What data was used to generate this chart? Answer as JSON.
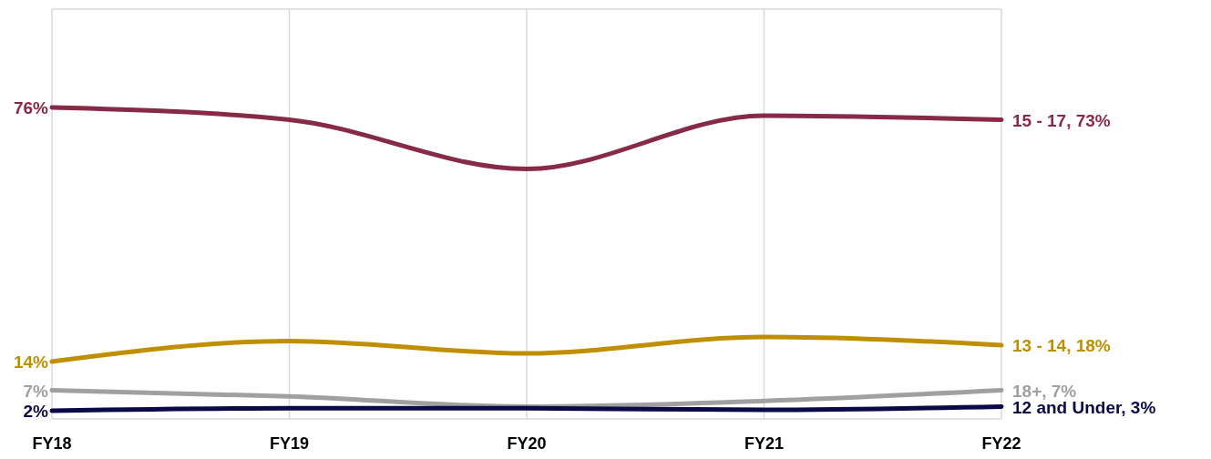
{
  "chart_data": {
    "type": "line",
    "categories": [
      "FY18",
      "FY19",
      "FY20",
      "FY21",
      "FY22"
    ],
    "series": [
      {
        "name": "15 - 17,",
        "color": "#862a46",
        "values": [
          76,
          73,
          61,
          74,
          73
        ],
        "value_labels": [
          "76%",
          null,
          null,
          null,
          "73%"
        ]
      },
      {
        "name": "13 - 14,",
        "color": "#bf8f00",
        "values": [
          14,
          19,
          16,
          20,
          18
        ],
        "value_labels": [
          "14%",
          null,
          null,
          null,
          "18%"
        ]
      },
      {
        "name": "18+,",
        "color": "#a0a0a0",
        "values": [
          7,
          5.5,
          3,
          4.4,
          7
        ],
        "value_labels": [
          "7%",
          null,
          null,
          null,
          "7%"
        ]
      },
      {
        "name": "12 and Under,",
        "color": "#0a0a46",
        "values": [
          2,
          2.6,
          2.6,
          2.2,
          3
        ],
        "value_labels": [
          "2%",
          null,
          null,
          null,
          "3%"
        ]
      }
    ],
    "ylim": [
      0,
      100
    ],
    "grid": true,
    "legend": false,
    "marker": "none",
    "line_style": "solid"
  }
}
